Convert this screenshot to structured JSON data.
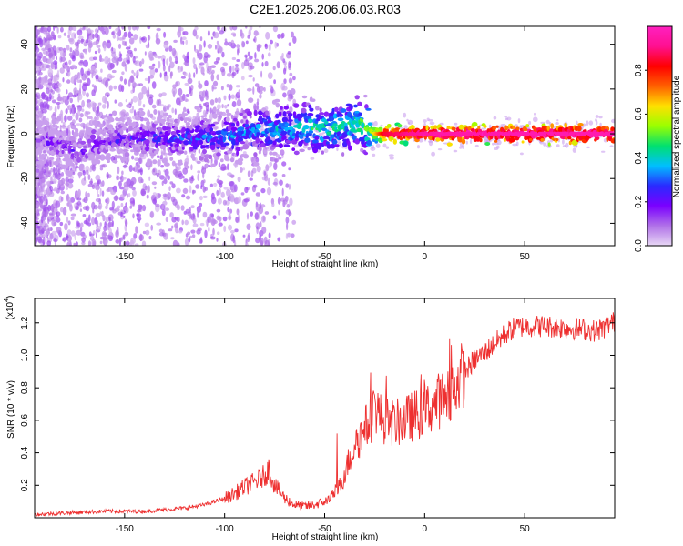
{
  "title": "C2E1.2025.206.06.03.R03",
  "chart_data": [
    {
      "type": "heatmap",
      "xlabel": "Height of straight line (km)",
      "ylabel": "Frequency (Hz)",
      "xlim": [
        -195,
        95
      ],
      "ylim": [
        -50,
        48
      ],
      "xticks": [
        -150,
        -100,
        -50,
        0,
        50
      ],
      "yticks": [
        -40,
        -20,
        0,
        20,
        40
      ],
      "colorbar": {
        "label": "Normalized spectral amplitude",
        "range": [
          0,
          1
        ],
        "ticks": [
          "0.0",
          "0.2",
          "0.4",
          "0.6",
          "0.8"
        ],
        "tick_values": [
          0.0,
          0.2,
          0.4,
          0.6,
          0.8
        ],
        "colors": [
          "#e8d8f5",
          "#b070e8",
          "#7a00ff",
          "#2a2aff",
          "#00bfff",
          "#00e070",
          "#9aff00",
          "#ffe000",
          "#ff6000",
          "#ff0000",
          "#ff1090",
          "#ff20c0"
        ]
      },
      "ridge": {
        "points": [
          [
            -190,
            -3
          ],
          [
            -175,
            -8
          ],
          [
            -165,
            -4
          ],
          [
            -150,
            -2
          ],
          [
            -130,
            -2
          ],
          [
            -110,
            -2
          ],
          [
            -100,
            -1
          ],
          [
            -90,
            0
          ],
          [
            -80,
            2
          ],
          [
            -70,
            2
          ],
          [
            -60,
            3
          ],
          [
            -50,
            2
          ],
          [
            -40,
            4
          ],
          [
            -32,
            5
          ],
          [
            -25,
            0
          ],
          [
            0,
            0
          ],
          [
            50,
            0
          ],
          [
            92,
            0
          ]
        ],
        "intensity": [
          [
            -195,
            0.15
          ],
          [
            -150,
            0.2
          ],
          [
            -120,
            0.25
          ],
          [
            -100,
            0.3
          ],
          [
            -80,
            0.35
          ],
          [
            -60,
            0.4
          ],
          [
            -40,
            0.42
          ],
          [
            -28,
            0.5
          ],
          [
            -20,
            0.85
          ],
          [
            0,
            0.95
          ],
          [
            50,
            0.97
          ],
          [
            92,
            0.97
          ]
        ]
      }
    },
    {
      "type": "line",
      "xlabel": "Height of straight line (km)",
      "ylabel": "SNR (10 * v/v)",
      "y_multiplier": "(x10",
      "y_multiplier_exp": "4",
      "y_multiplier_close": ")",
      "xlim": [
        -195,
        95
      ],
      "ylim": [
        0,
        1.35
      ],
      "xticks": [
        -150,
        -100,
        -50,
        0,
        50
      ],
      "yticks": [
        0.2,
        0.4,
        0.6,
        0.8,
        1.0,
        1.2
      ],
      "ytick_labels": [
        "0.2",
        "0.4",
        "0.6",
        "0.8",
        "1.0",
        "1.2"
      ],
      "color": "#ee3030",
      "series": [
        {
          "x": [
            -195,
            -180,
            -160,
            -140,
            -130,
            -120,
            -110,
            -100,
            -95,
            -90,
            -85,
            -80,
            -78,
            -75,
            -70,
            -65,
            -60,
            -55,
            -50,
            -45,
            -42,
            -40,
            -37,
            -35,
            -32,
            -30,
            -27,
            -25,
            -22,
            -20,
            -15,
            -10,
            -5,
            0,
            5,
            10,
            15,
            20,
            25,
            30,
            35,
            40,
            45,
            50,
            60,
            70,
            80,
            85,
            90,
            93
          ],
          "values": [
            0.02,
            0.03,
            0.04,
            0.04,
            0.05,
            0.06,
            0.08,
            0.12,
            0.15,
            0.19,
            0.22,
            0.26,
            0.3,
            0.2,
            0.12,
            0.08,
            0.07,
            0.08,
            0.1,
            0.15,
            0.2,
            0.28,
            0.38,
            0.45,
            0.5,
            0.55,
            0.6,
            0.7,
            0.62,
            0.6,
            0.58,
            0.6,
            0.63,
            0.66,
            0.7,
            0.75,
            0.82,
            0.9,
            0.97,
            1.02,
            1.07,
            1.13,
            1.17,
            1.18,
            1.18,
            1.17,
            1.16,
            1.15,
            1.17,
            1.2
          ]
        }
      ]
    }
  ]
}
